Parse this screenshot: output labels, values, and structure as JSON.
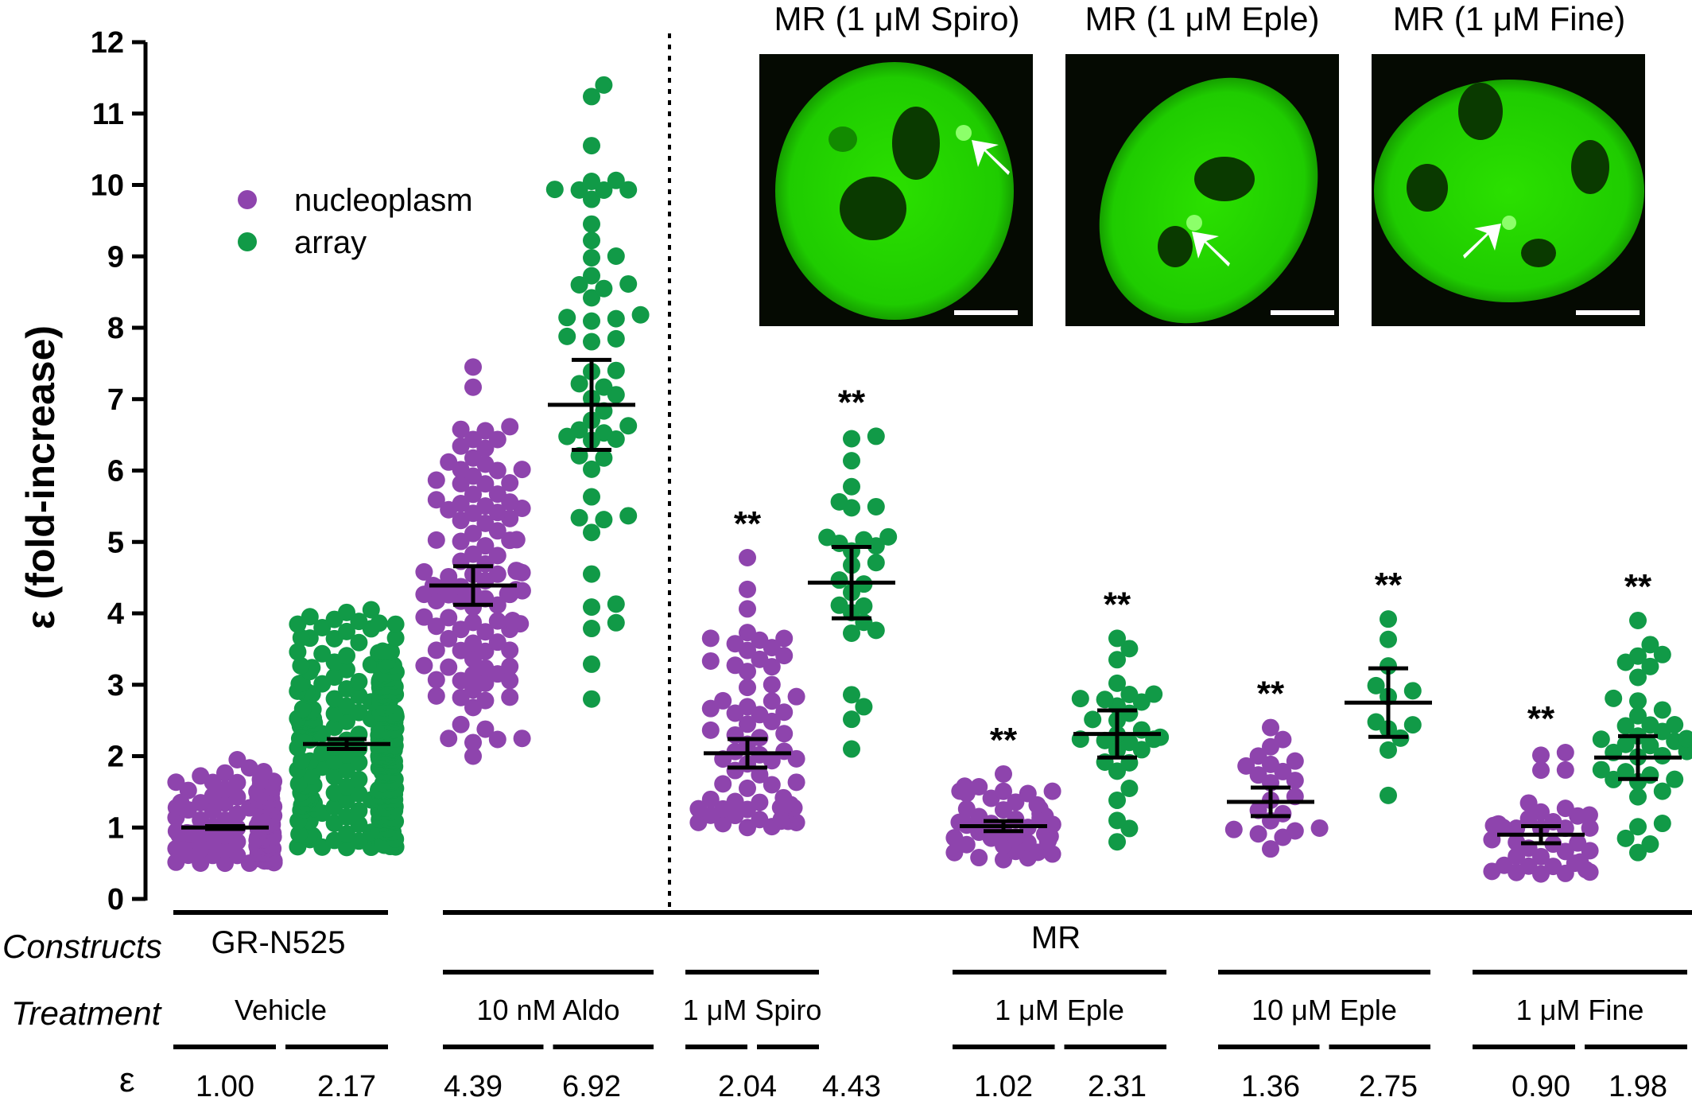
{
  "chart_data": {
    "type": "scatter",
    "ylabel": "ε (fold-increase)",
    "ylim": [
      0,
      12
    ],
    "yticks": [
      "0",
      "1",
      "2",
      "3",
      "4",
      "5",
      "6",
      "7",
      "8",
      "9",
      "10",
      "11",
      "12"
    ],
    "legend": {
      "placement": "top-left",
      "entries": [
        {
          "name": "nucleoplasm",
          "color": "#8E44AD"
        },
        {
          "name": "array",
          "color": "#119A47"
        }
      ]
    },
    "row_headers": {
      "constructs": "Constructs",
      "treatment": "Treatment",
      "epsilon": "ε"
    },
    "constructs": [
      "GR-N525",
      "MR"
    ],
    "treatments": [
      "Vehicle",
      "10 nM Aldo",
      "1 μM Spiro",
      "1 μM Eple",
      "10 μM Eple",
      "1 μM Fine"
    ],
    "significance_marker": "**",
    "groups": [
      {
        "treatment": "Vehicle",
        "series": "nucleoplasm",
        "mean": 1.0,
        "eps_label": "1.00",
        "sem": 0.02,
        "range": [
          0.5,
          1.95
        ],
        "n": 160,
        "sig": ""
      },
      {
        "treatment": "Vehicle",
        "series": "array",
        "mean": 2.17,
        "eps_label": "2.17",
        "sem": 0.07,
        "range": [
          0.72,
          4.05
        ],
        "n": 320,
        "sig": ""
      },
      {
        "treatment": "10 nM Aldo",
        "series": "nucleoplasm",
        "mean": 4.39,
        "eps_label": "4.39",
        "sem": 0.27,
        "range": [
          2.0,
          7.45
        ],
        "n": 110,
        "sig": ""
      },
      {
        "treatment": "10 nM Aldo",
        "series": "array",
        "mean": 6.92,
        "eps_label": "6.92",
        "sem": 0.63,
        "range": [
          2.8,
          11.4
        ],
        "n": 55,
        "sig": ""
      },
      {
        "treatment": "1 μM Spiro",
        "series": "nucleoplasm",
        "mean": 2.04,
        "eps_label": "2.04",
        "sem": 0.2,
        "range": [
          1.0,
          4.78
        ],
        "n": 75,
        "sig": "**"
      },
      {
        "treatment": "1 μM Spiro",
        "series": "array",
        "mean": 4.43,
        "eps_label": "4.43",
        "sem": 0.5,
        "range": [
          2.1,
          6.48
        ],
        "n": 28,
        "sig": "**"
      },
      {
        "treatment": "1 μM Eple",
        "series": "nucleoplasm",
        "mean": 1.02,
        "eps_label": "1.02",
        "sem": 0.07,
        "range": [
          0.55,
          1.75
        ],
        "n": 45,
        "sig": "**"
      },
      {
        "treatment": "1 μM Eple",
        "series": "array",
        "mean": 2.31,
        "eps_label": "2.31",
        "sem": 0.33,
        "range": [
          0.8,
          3.65
        ],
        "n": 30,
        "sig": "**"
      },
      {
        "treatment": "10 μM Eple",
        "series": "nucleoplasm",
        "mean": 1.36,
        "eps_label": "1.36",
        "sem": 0.2,
        "range": [
          0.7,
          2.4
        ],
        "n": 22,
        "sig": "**"
      },
      {
        "treatment": "10 μM Eple",
        "series": "array",
        "mean": 2.75,
        "eps_label": "2.75",
        "sem": 0.48,
        "range": [
          1.45,
          3.92
        ],
        "n": 12,
        "sig": "**"
      },
      {
        "treatment": "1 μM Fine",
        "series": "nucleoplasm",
        "mean": 0.9,
        "eps_label": "0.90",
        "sem": 0.12,
        "range": [
          0.35,
          2.05
        ],
        "n": 40,
        "sig": "**"
      },
      {
        "treatment": "1 μM Fine",
        "series": "array",
        "mean": 1.98,
        "eps_label": "1.98",
        "sem": 0.3,
        "range": [
          0.65,
          3.9
        ],
        "n": 38,
        "sig": "**"
      }
    ],
    "insets": [
      {
        "title": "MR (1 μM Spiro)",
        "image_color": "#22D800"
      },
      {
        "title": "MR (1 μM Eple)",
        "image_color": "#22D800"
      },
      {
        "title": "MR (1 μM Fine)",
        "image_color": "#22D800"
      }
    ]
  }
}
